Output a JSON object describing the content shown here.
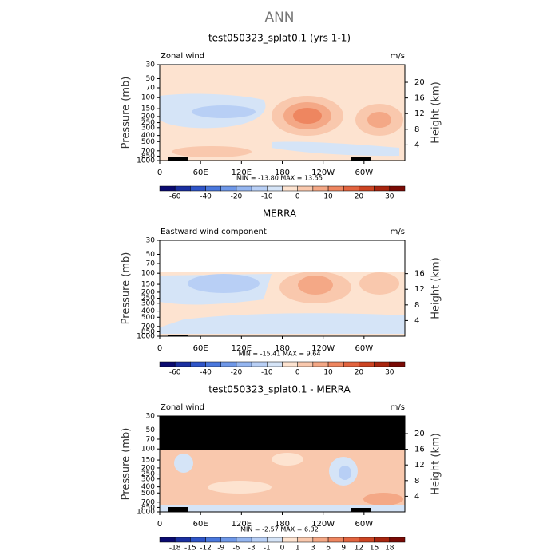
{
  "title": "ANN",
  "chart_data": [
    {
      "type": "contour",
      "title": "test050323_splat0.1 (yrs 1-1)",
      "subtitle_left": "Zonal wind",
      "subtitle_right": "m/s",
      "ylabel": "Pressure (mb)",
      "y2label": "Height (km)",
      "log_scale": true,
      "ylim": [
        1000,
        30
      ],
      "yticks": [
        30,
        50,
        70,
        100,
        150,
        200,
        250,
        300,
        400,
        500,
        700,
        850,
        1000
      ],
      "y2lim": [
        0,
        24.5
      ],
      "y2ticks": [
        4,
        8,
        12,
        16,
        20
      ],
      "xlim": [
        0,
        360
      ],
      "xticks": [
        0,
        {
          "value": 60,
          "label": "60E"
        },
        {
          "value": 120,
          "label": "120E"
        },
        180,
        {
          "value": 240,
          "label": "120W"
        },
        {
          "value": 300,
          "label": "60W"
        }
      ],
      "annotation": "MIN = -13.80   MAX =  13.55",
      "colorbar": {
        "labels": [
          -60,
          -40,
          -20,
          -10,
          0,
          10,
          20,
          30
        ],
        "colors": [
          "#0a0a70",
          "#1a2fa0",
          "#2f55c8",
          "#4a78dd",
          "#6f98e8",
          "#95b6f0",
          "#b8cff5",
          "#d5e4f7",
          "#fde3d0",
          "#f9c8ad",
          "#f4a886",
          "#ee8660",
          "#e2643f",
          "#cc4422",
          "#a8250f",
          "#7a0a05"
        ]
      }
    },
    {
      "type": "contour",
      "title": "MERRA",
      "subtitle_left": "Eastward wind component",
      "subtitle_right": "m/s",
      "ylabel": "Pressure (mb)",
      "y2label": "Height (km)",
      "log_scale": true,
      "ylim": [
        1000,
        30
      ],
      "yticks": [
        30,
        50,
        70,
        100,
        150,
        200,
        250,
        300,
        400,
        500,
        700,
        850,
        1000
      ],
      "y2lim": [
        0,
        24.5
      ],
      "y2ticks": [
        4,
        8,
        12,
        16
      ],
      "xlim": [
        0,
        360
      ],
      "xticks": [
        0,
        {
          "value": 60,
          "label": "60E"
        },
        {
          "value": 120,
          "label": "120E"
        },
        180,
        {
          "value": 240,
          "label": "120W"
        },
        {
          "value": 300,
          "label": "60W"
        }
      ],
      "annotation": "MIN = -15.41   MAX =   9.64",
      "colorbar": {
        "labels": [
          -60,
          -40,
          -20,
          -10,
          0,
          10,
          20,
          30
        ],
        "colors": [
          "#0a0a70",
          "#1a2fa0",
          "#2f55c8",
          "#4a78dd",
          "#6f98e8",
          "#95b6f0",
          "#b8cff5",
          "#d5e4f7",
          "#fde3d0",
          "#f9c8ad",
          "#f4a886",
          "#ee8660",
          "#e2643f",
          "#cc4422",
          "#a8250f",
          "#7a0a05"
        ]
      }
    },
    {
      "type": "contour",
      "title": "test050323_splat0.1 - MERRA",
      "subtitle_left": "Zonal wind",
      "subtitle_right": "m/s",
      "ylabel": "Pressure (mb)",
      "y2label": "Height (km)",
      "log_scale": true,
      "ylim": [
        1000,
        30
      ],
      "yticks": [
        30,
        50,
        70,
        100,
        150,
        200,
        250,
        300,
        400,
        500,
        700,
        850,
        1000
      ],
      "y2lim": [
        0,
        24.5
      ],
      "y2ticks": [
        4,
        8,
        12,
        16,
        20
      ],
      "xlim": [
        0,
        360
      ],
      "xticks": [
        0,
        {
          "value": 60,
          "label": "60E"
        },
        {
          "value": 120,
          "label": "120E"
        },
        180,
        {
          "value": 240,
          "label": "120W"
        },
        {
          "value": 300,
          "label": "60W"
        }
      ],
      "annotation": "MIN =  -2.57   MAX =   6.32",
      "colorbar": {
        "labels": [
          -18,
          -15,
          -12,
          -9,
          -6,
          -3,
          -1,
          0,
          1,
          3,
          6,
          9,
          12,
          15,
          18
        ],
        "colors": [
          "#0a0a70",
          "#1a2fa0",
          "#2f55c8",
          "#4a78dd",
          "#6f98e8",
          "#95b6f0",
          "#b8cff5",
          "#d5e4f7",
          "#fde3d0",
          "#f9c8ad",
          "#f4a886",
          "#ee8660",
          "#e2643f",
          "#cc4422",
          "#a8250f",
          "#7a0a05"
        ]
      }
    }
  ]
}
